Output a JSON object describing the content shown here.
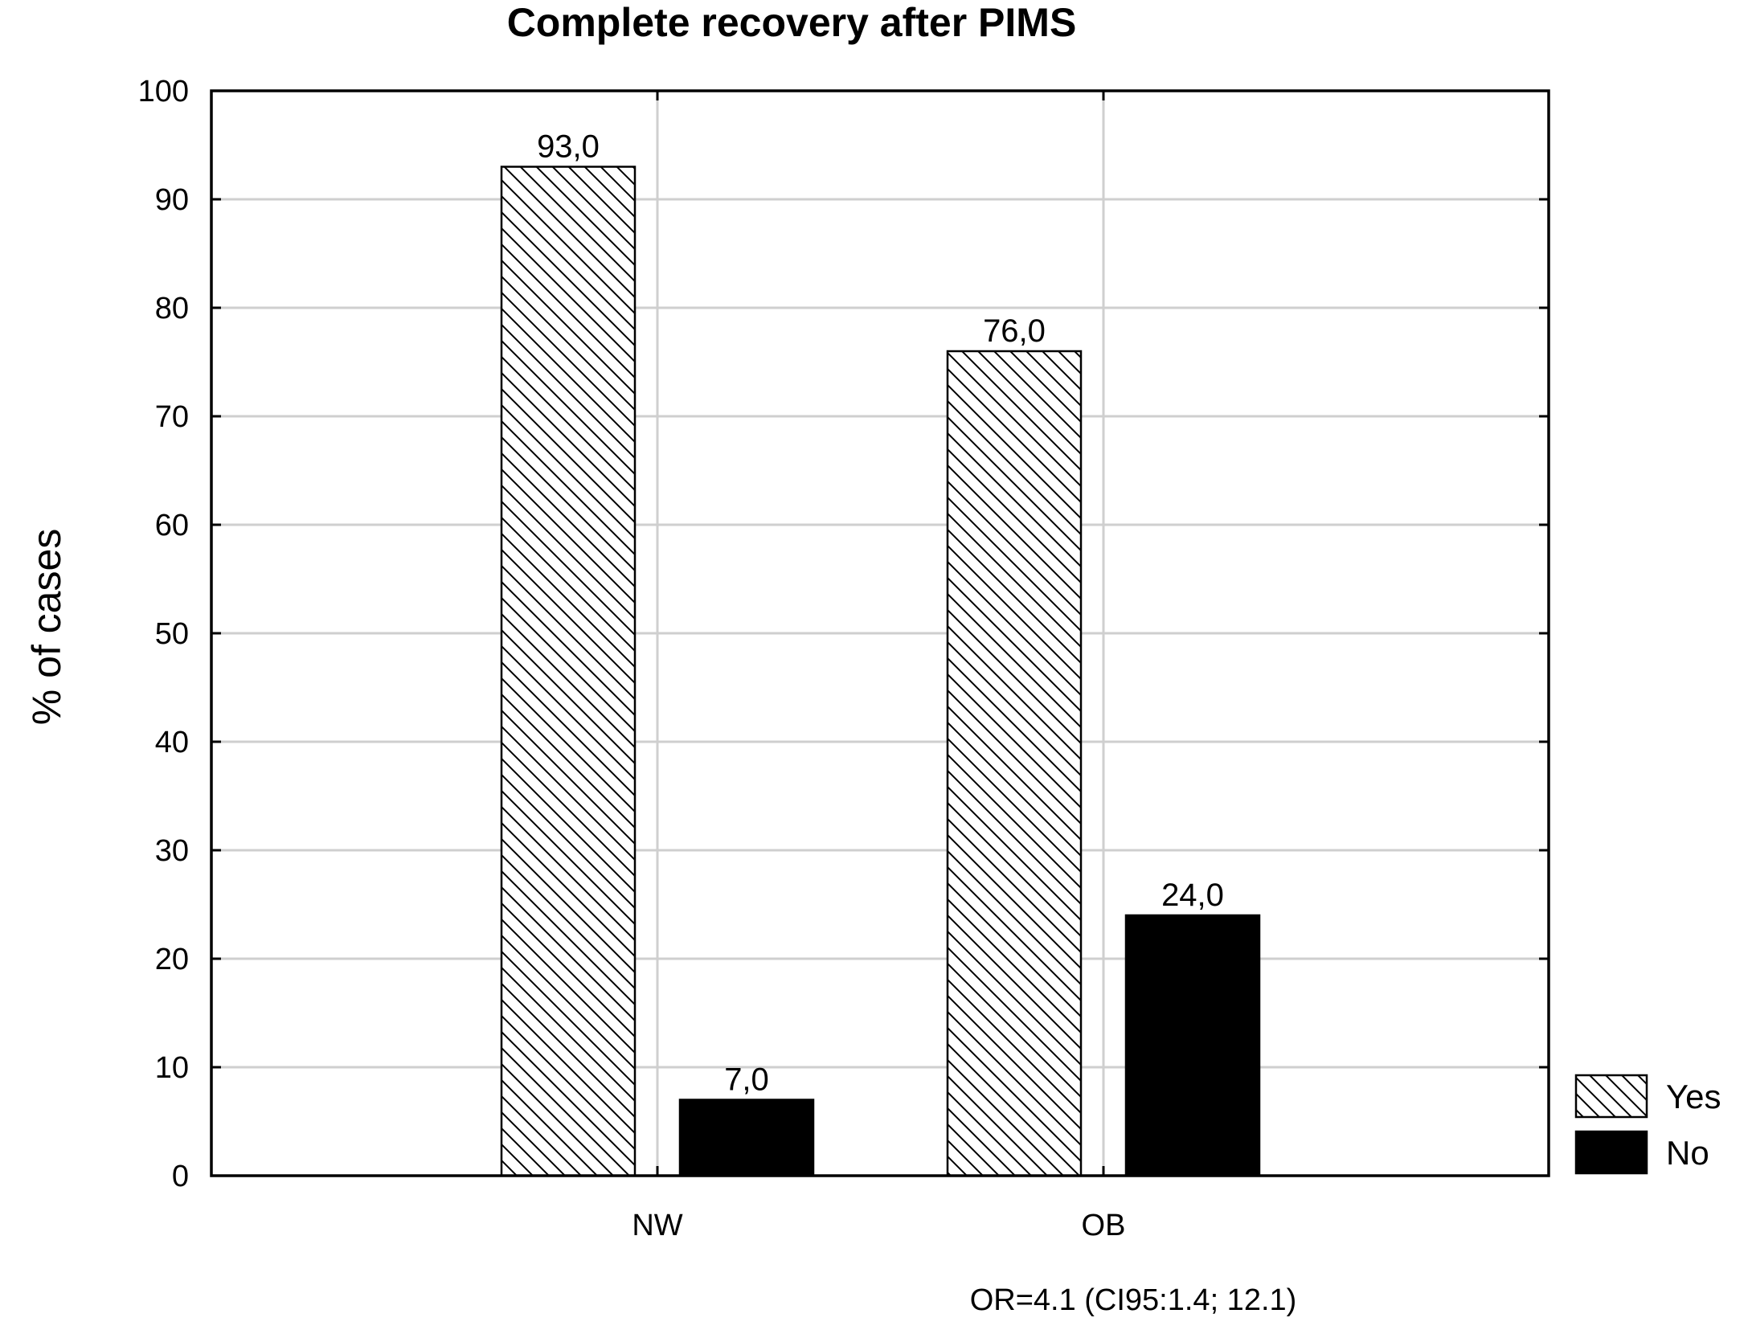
{
  "chart_data": {
    "type": "bar",
    "title": "Complete recovery after PIMS",
    "ylabel": "% of cases",
    "xlabel": "",
    "categories": [
      "NW",
      "OB"
    ],
    "series": [
      {
        "name": "Yes",
        "values": [
          93.0,
          76.0
        ],
        "labels": [
          "93,0",
          "76,0"
        ],
        "pattern": "hatch",
        "color": "#ffffff"
      },
      {
        "name": "No",
        "values": [
          7.0,
          24.0
        ],
        "labels": [
          "7,0",
          "24,0"
        ],
        "pattern": "solid",
        "color": "#000000"
      }
    ],
    "ylim": [
      0,
      100
    ],
    "yticks": [
      0,
      10,
      20,
      30,
      40,
      50,
      60,
      70,
      80,
      90,
      100
    ],
    "grid": true,
    "legend_position": "bottom-right",
    "annotation": "OR=4.1 (CI95:1.4; 12.1)"
  }
}
